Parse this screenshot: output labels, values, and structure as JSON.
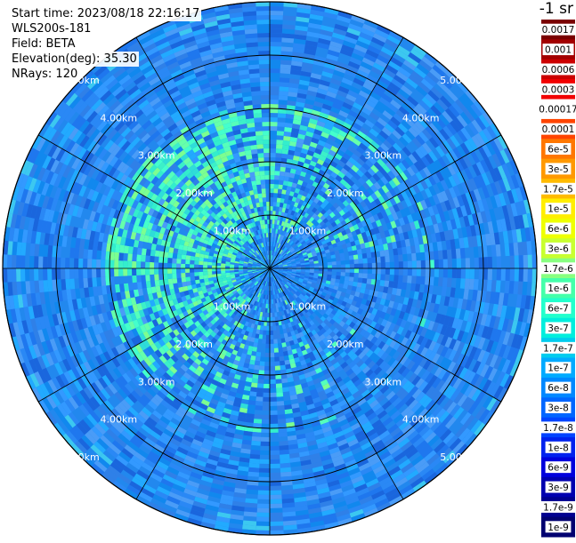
{
  "info": {
    "start_time": "Start time: 2023/08/18 22:16:17",
    "instrument": "WLS200s-181",
    "field": "Field: BETA",
    "elevation": "Elevation(deg): 35.30",
    "nrays": "NRays: 120"
  },
  "colorbar": {
    "unit": "-1 sr",
    "labels": [
      "0.0017",
      "0.001",
      "0.0006",
      "0.0003",
      "0.00017",
      "0.0001",
      "6e-5",
      "3e-5",
      "1.7e-5",
      "1e-5",
      "6e-6",
      "3e-6",
      "1.7e-6",
      "1e-6",
      "6e-7",
      "3e-7",
      "1.7e-7",
      "1e-7",
      "6e-8",
      "3e-8",
      "1.7e-8",
      "1e-8",
      "6e-9",
      "3e-9",
      "1.7e-9",
      "1e-9"
    ],
    "colors": [
      "#7a0000",
      "#a30000",
      "#cc0000",
      "#f20000",
      "#ffffff",
      "#ff4400",
      "#ff7700",
      "#ff9900",
      "#ffbb00",
      "#ffee00",
      "#eeff00",
      "#c8ff30",
      "#88ff80",
      "#44ffaa",
      "#22ffcc",
      "#00eedd",
      "#00ccee",
      "#00aaff",
      "#0088ff",
      "#0066ff",
      "#0044ff",
      "#0022ee",
      "#0000dd",
      "#0000b0",
      "#000090",
      "#000070"
    ]
  },
  "chart_data": {
    "type": "ppi",
    "title": "",
    "field": "BETA",
    "elevation_deg": 35.3,
    "nrays": 120,
    "range_rings_km": [
      1,
      2,
      3,
      4,
      5
    ],
    "ring_labels": [
      "1.00km",
      "2.00km",
      "3.00km",
      "4.00km",
      "5.00km"
    ],
    "spoke_count": 12,
    "background_color": "#2288ee",
    "enhanced_region": {
      "center_azimuth_deg": 300,
      "extent_km": 3.0,
      "color": "#33ffcc"
    }
  }
}
